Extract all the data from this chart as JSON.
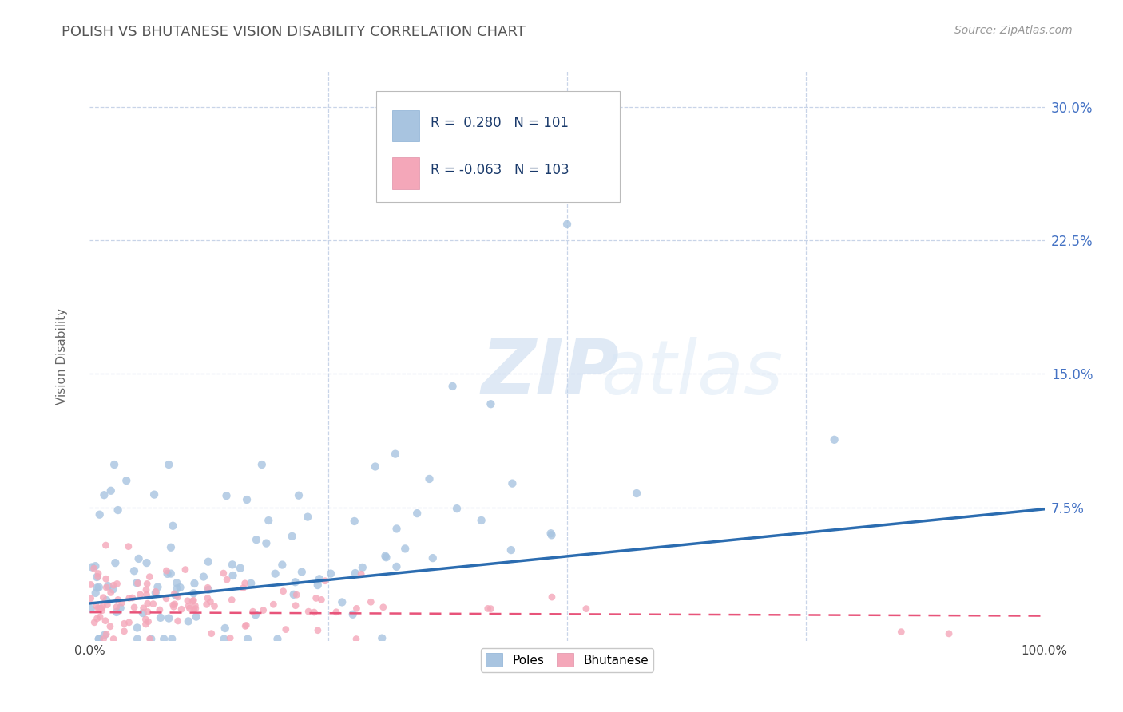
{
  "title": "POLISH VS BHUTANESE VISION DISABILITY CORRELATION CHART",
  "source": "Source: ZipAtlas.com",
  "ylabel": "Vision Disability",
  "xlim": [
    0.0,
    1.0
  ],
  "ylim": [
    0.0,
    0.32
  ],
  "ytick_vals": [
    0.075,
    0.15,
    0.225,
    0.3
  ],
  "ytick_labels": [
    "7.5%",
    "15.0%",
    "22.5%",
    "30.0%"
  ],
  "xtick_vals": [
    0.0,
    1.0
  ],
  "xtick_labels": [
    "0.0%",
    "100.0%"
  ],
  "poles_R": 0.28,
  "poles_N": 101,
  "bhutanese_R": -0.063,
  "bhutanese_N": 103,
  "poles_color": "#a8c4e0",
  "bhutanese_color": "#f4a7b9",
  "poles_line_color": "#2b6cb0",
  "bhutanese_line_color": "#e8547a",
  "poles_line_start_y": 0.021,
  "poles_line_end_y": 0.074,
  "bhutanese_line_start_y": 0.016,
  "bhutanese_line_end_y": 0.014,
  "watermark_zip": "ZIP",
  "watermark_atlas": "atlas",
  "background_color": "#ffffff",
  "grid_color": "#c8d4e8",
  "legend_color": "#1a3a6b",
  "title_color": "#555555",
  "source_color": "#999999",
  "ylabel_color": "#666666",
  "ytick_color": "#4472c4"
}
